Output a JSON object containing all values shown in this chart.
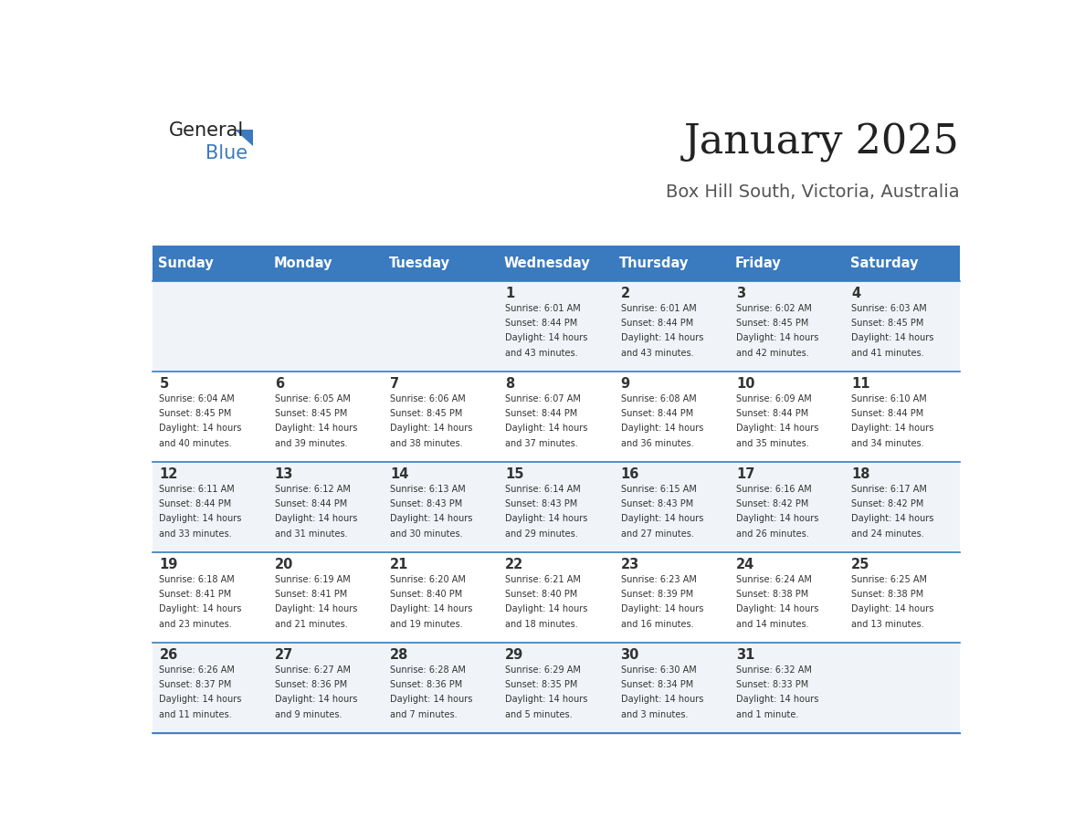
{
  "title": "January 2025",
  "subtitle": "Box Hill South, Victoria, Australia",
  "header_color": "#3a7abf",
  "header_text_color": "#ffffff",
  "day_names": [
    "Sunday",
    "Monday",
    "Tuesday",
    "Wednesday",
    "Thursday",
    "Friday",
    "Saturday"
  ],
  "row_alt_color": "#f0f4f8",
  "row_main_color": "#ffffff",
  "grid_line_color": "#3a7abf",
  "text_color": "#333333",
  "date_color": "#333333",
  "background_color": "#ffffff",
  "days": [
    {
      "day": 1,
      "col": 3,
      "row": 0,
      "sunrise": "6:01 AM",
      "sunset": "8:44 PM",
      "daylight_hours": 14,
      "daylight_minutes": 43
    },
    {
      "day": 2,
      "col": 4,
      "row": 0,
      "sunrise": "6:01 AM",
      "sunset": "8:44 PM",
      "daylight_hours": 14,
      "daylight_minutes": 43
    },
    {
      "day": 3,
      "col": 5,
      "row": 0,
      "sunrise": "6:02 AM",
      "sunset": "8:45 PM",
      "daylight_hours": 14,
      "daylight_minutes": 42
    },
    {
      "day": 4,
      "col": 6,
      "row": 0,
      "sunrise": "6:03 AM",
      "sunset": "8:45 PM",
      "daylight_hours": 14,
      "daylight_minutes": 41
    },
    {
      "day": 5,
      "col": 0,
      "row": 1,
      "sunrise": "6:04 AM",
      "sunset": "8:45 PM",
      "daylight_hours": 14,
      "daylight_minutes": 40
    },
    {
      "day": 6,
      "col": 1,
      "row": 1,
      "sunrise": "6:05 AM",
      "sunset": "8:45 PM",
      "daylight_hours": 14,
      "daylight_minutes": 39
    },
    {
      "day": 7,
      "col": 2,
      "row": 1,
      "sunrise": "6:06 AM",
      "sunset": "8:45 PM",
      "daylight_hours": 14,
      "daylight_minutes": 38
    },
    {
      "day": 8,
      "col": 3,
      "row": 1,
      "sunrise": "6:07 AM",
      "sunset": "8:44 PM",
      "daylight_hours": 14,
      "daylight_minutes": 37
    },
    {
      "day": 9,
      "col": 4,
      "row": 1,
      "sunrise": "6:08 AM",
      "sunset": "8:44 PM",
      "daylight_hours": 14,
      "daylight_minutes": 36
    },
    {
      "day": 10,
      "col": 5,
      "row": 1,
      "sunrise": "6:09 AM",
      "sunset": "8:44 PM",
      "daylight_hours": 14,
      "daylight_minutes": 35
    },
    {
      "day": 11,
      "col": 6,
      "row": 1,
      "sunrise": "6:10 AM",
      "sunset": "8:44 PM",
      "daylight_hours": 14,
      "daylight_minutes": 34
    },
    {
      "day": 12,
      "col": 0,
      "row": 2,
      "sunrise": "6:11 AM",
      "sunset": "8:44 PM",
      "daylight_hours": 14,
      "daylight_minutes": 33
    },
    {
      "day": 13,
      "col": 1,
      "row": 2,
      "sunrise": "6:12 AM",
      "sunset": "8:44 PM",
      "daylight_hours": 14,
      "daylight_minutes": 31
    },
    {
      "day": 14,
      "col": 2,
      "row": 2,
      "sunrise": "6:13 AM",
      "sunset": "8:43 PM",
      "daylight_hours": 14,
      "daylight_minutes": 30
    },
    {
      "day": 15,
      "col": 3,
      "row": 2,
      "sunrise": "6:14 AM",
      "sunset": "8:43 PM",
      "daylight_hours": 14,
      "daylight_minutes": 29
    },
    {
      "day": 16,
      "col": 4,
      "row": 2,
      "sunrise": "6:15 AM",
      "sunset": "8:43 PM",
      "daylight_hours": 14,
      "daylight_minutes": 27
    },
    {
      "day": 17,
      "col": 5,
      "row": 2,
      "sunrise": "6:16 AM",
      "sunset": "8:42 PM",
      "daylight_hours": 14,
      "daylight_minutes": 26
    },
    {
      "day": 18,
      "col": 6,
      "row": 2,
      "sunrise": "6:17 AM",
      "sunset": "8:42 PM",
      "daylight_hours": 14,
      "daylight_minutes": 24
    },
    {
      "day": 19,
      "col": 0,
      "row": 3,
      "sunrise": "6:18 AM",
      "sunset": "8:41 PM",
      "daylight_hours": 14,
      "daylight_minutes": 23
    },
    {
      "day": 20,
      "col": 1,
      "row": 3,
      "sunrise": "6:19 AM",
      "sunset": "8:41 PM",
      "daylight_hours": 14,
      "daylight_minutes": 21
    },
    {
      "day": 21,
      "col": 2,
      "row": 3,
      "sunrise": "6:20 AM",
      "sunset": "8:40 PM",
      "daylight_hours": 14,
      "daylight_minutes": 19
    },
    {
      "day": 22,
      "col": 3,
      "row": 3,
      "sunrise": "6:21 AM",
      "sunset": "8:40 PM",
      "daylight_hours": 14,
      "daylight_minutes": 18
    },
    {
      "day": 23,
      "col": 4,
      "row": 3,
      "sunrise": "6:23 AM",
      "sunset": "8:39 PM",
      "daylight_hours": 14,
      "daylight_minutes": 16
    },
    {
      "day": 24,
      "col": 5,
      "row": 3,
      "sunrise": "6:24 AM",
      "sunset": "8:38 PM",
      "daylight_hours": 14,
      "daylight_minutes": 14
    },
    {
      "day": 25,
      "col": 6,
      "row": 3,
      "sunrise": "6:25 AM",
      "sunset": "8:38 PM",
      "daylight_hours": 14,
      "daylight_minutes": 13
    },
    {
      "day": 26,
      "col": 0,
      "row": 4,
      "sunrise": "6:26 AM",
      "sunset": "8:37 PM",
      "daylight_hours": 14,
      "daylight_minutes": 11
    },
    {
      "day": 27,
      "col": 1,
      "row": 4,
      "sunrise": "6:27 AM",
      "sunset": "8:36 PM",
      "daylight_hours": 14,
      "daylight_minutes": 9
    },
    {
      "day": 28,
      "col": 2,
      "row": 4,
      "sunrise": "6:28 AM",
      "sunset": "8:36 PM",
      "daylight_hours": 14,
      "daylight_minutes": 7
    },
    {
      "day": 29,
      "col": 3,
      "row": 4,
      "sunrise": "6:29 AM",
      "sunset": "8:35 PM",
      "daylight_hours": 14,
      "daylight_minutes": 5
    },
    {
      "day": 30,
      "col": 4,
      "row": 4,
      "sunrise": "6:30 AM",
      "sunset": "8:34 PM",
      "daylight_hours": 14,
      "daylight_minutes": 3
    },
    {
      "day": 31,
      "col": 5,
      "row": 4,
      "sunrise": "6:32 AM",
      "sunset": "8:33 PM",
      "daylight_hours": 14,
      "daylight_minutes": 1
    }
  ],
  "num_rows": 5,
  "num_cols": 7,
  "logo_text_general": "General",
  "logo_text_blue": "Blue",
  "logo_triangle_color": "#3a7abf"
}
